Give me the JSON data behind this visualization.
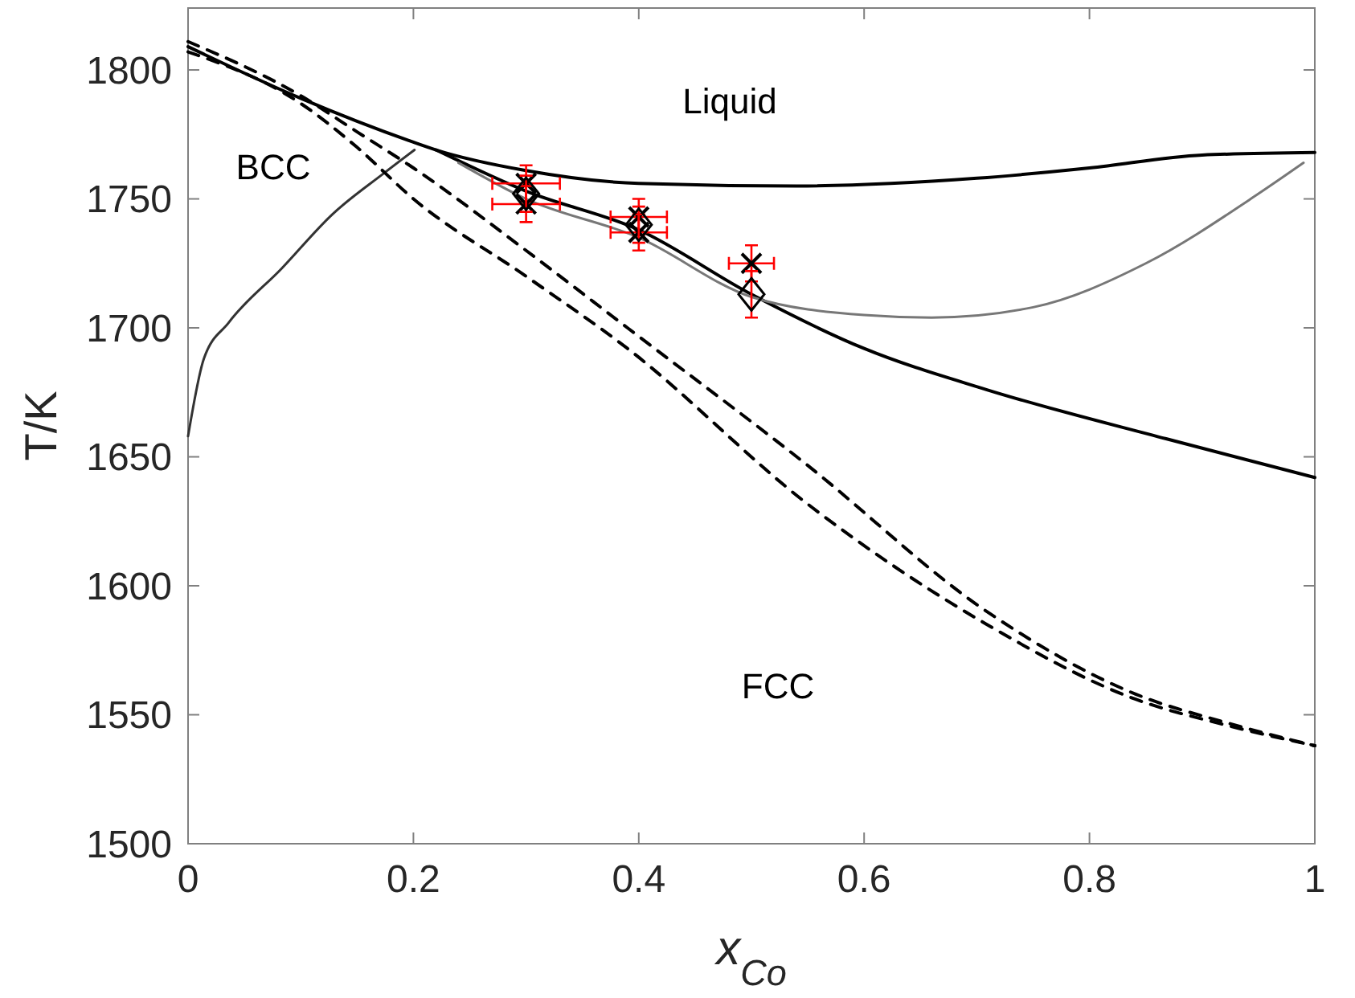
{
  "chart_data": {
    "type": "line",
    "xlabel": "x$_{Co}$",
    "ylabel": "T/K",
    "xlim": [
      0,
      1
    ],
    "ylim": [
      1500,
      1824
    ],
    "xticks": [
      0,
      0.2,
      0.4,
      0.6,
      0.8,
      1
    ],
    "yticks": [
      1500,
      1550,
      1600,
      1650,
      1700,
      1750,
      1800
    ],
    "grid": false,
    "series": [
      {
        "color": "#000000",
        "line_style": "solid",
        "x": [
          0,
          0.1,
          0.2,
          0.22,
          0.3,
          0.4,
          0.54,
          0.7,
          0.8,
          0.9,
          1
        ],
        "values": [
          1809,
          1789,
          1772,
          1769,
          1761,
          1756,
          1755,
          1758,
          1762,
          1767,
          1768
        ]
      },
      {
        "color": "#000000",
        "line_style": "solid",
        "x": [
          0.22,
          0.3,
          0.4,
          0.5,
          0.6,
          0.709,
          0.868,
          1
        ],
        "values": [
          1769,
          1753,
          1738,
          1713,
          1692,
          1676,
          1657,
          1642
        ]
      },
      {
        "color": "#777777",
        "line_style": "solid",
        "x": [
          0.24,
          0.3,
          0.4,
          0.5,
          0.6,
          0.66,
          0.75,
          0.85,
          0.95,
          0.99
        ],
        "values": [
          1764,
          1750,
          1735,
          1712,
          1705,
          1704,
          1708,
          1725,
          1752,
          1764
        ]
      },
      {
        "color": "#333333",
        "line_style": "solid",
        "x": [
          0,
          0.014,
          0.036,
          0.083,
          0.128,
          0.174,
          0.201
        ],
        "values": [
          1658,
          1688,
          1702,
          1723,
          1744,
          1760,
          1769
        ]
      },
      {
        "color": "#000000",
        "line_style": "dashed",
        "x": [
          0,
          0.1,
          0.15,
          0.2,
          0.3,
          0.39,
          0.549,
          0.709,
          0.841,
          0.921,
          1
        ],
        "values": [
          1811,
          1790,
          1776,
          1762,
          1730,
          1700,
          1647,
          1590,
          1558,
          1547,
          1538
        ]
      },
      {
        "color": "#000000",
        "line_style": "dashed",
        "x": [
          0,
          0.1,
          0.15,
          0.2,
          0.3,
          0.39,
          0.549,
          0.709,
          0.841,
          0.921,
          1
        ],
        "values": [
          1807,
          1787,
          1770,
          1750,
          1720,
          1692,
          1632,
          1585,
          1556,
          1546,
          1538
        ]
      },
      {
        "type": "scatter",
        "marker": "cross",
        "color": "#000000",
        "x": [
          0.3,
          0.3,
          0.4,
          0.4,
          0.5
        ],
        "values": [
          1756,
          1748,
          1743,
          1737,
          1725
        ],
        "errors": [
          7,
          7,
          7,
          7,
          7
        ],
        "xerrors": [
          0.03,
          0.03,
          0.025,
          0.025,
          0.02
        ]
      },
      {
        "type": "scatter",
        "marker": "diamond",
        "color": "#000000",
        "x": [
          0.3,
          0.4,
          0.5
        ],
        "values": [
          1752,
          1740,
          1713
        ],
        "errors": [
          7,
          7,
          9
        ]
      }
    ],
    "annotations": [
      "Liquid",
      "BCC",
      "FCC"
    ]
  }
}
